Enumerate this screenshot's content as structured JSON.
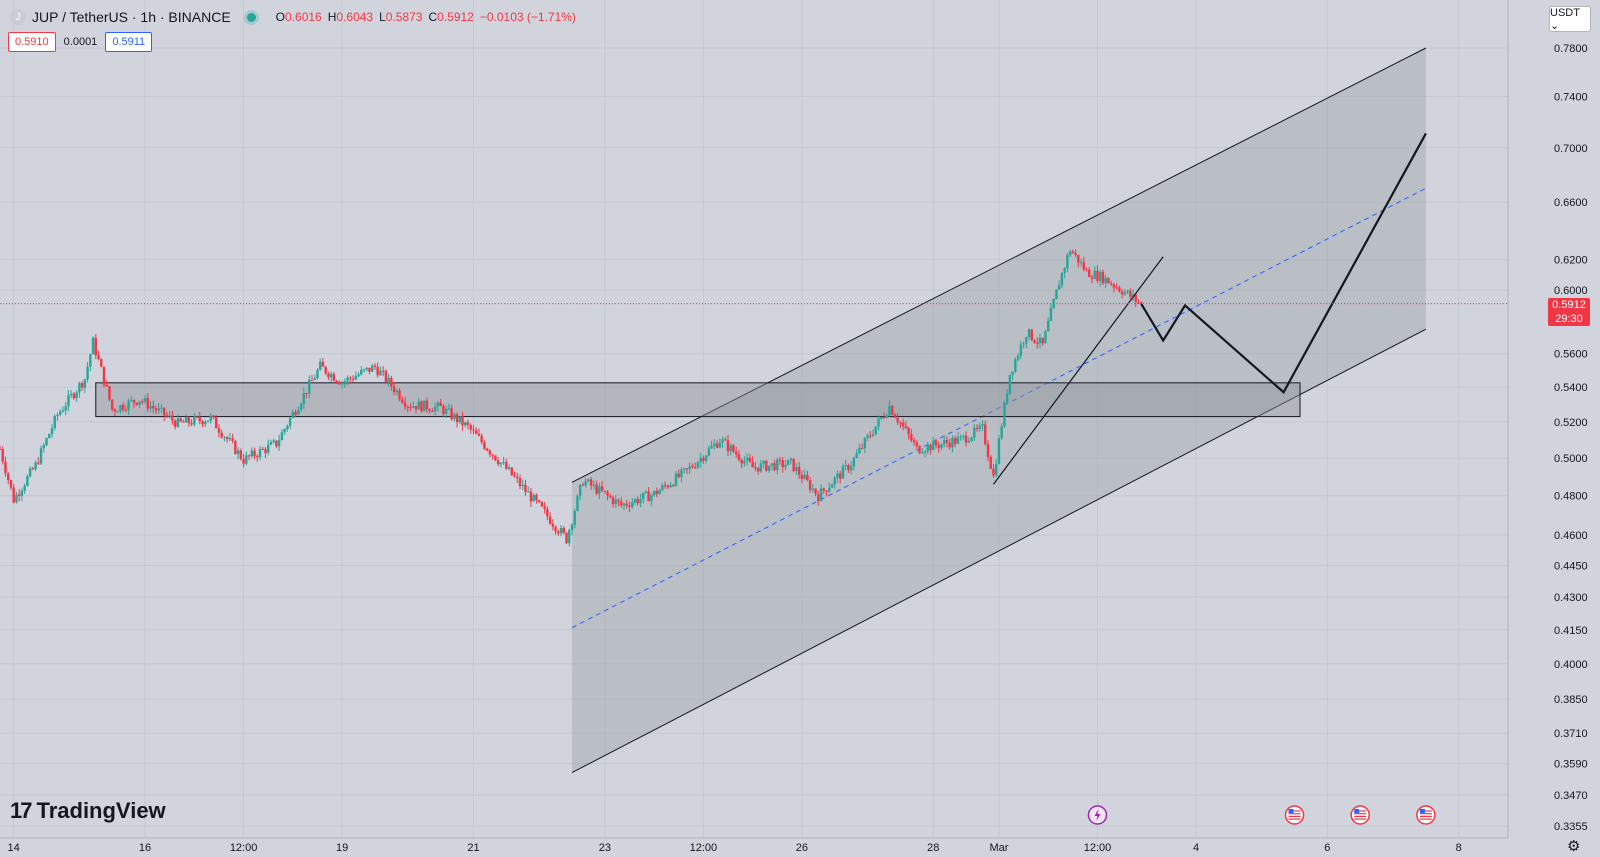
{
  "header": {
    "symbol_icon": "J",
    "title": "JUP / TetherUS · 1h · BINANCE",
    "ohlc": {
      "o_label": "O",
      "o": "0.6016",
      "h_label": "H",
      "h": "0.6043",
      "l_label": "L",
      "l": "0.5873",
      "c_label": "C",
      "c": "0.5912",
      "change": "−0.0103 (−1.71%)"
    }
  },
  "prices": {
    "sell": "0.5910",
    "spread": "0.0001",
    "buy": "0.5911"
  },
  "currency": "USDT ⌄",
  "brand": {
    "mark": "17",
    "name": "TradingView"
  },
  "current_price": {
    "value": "0.5912",
    "countdown": "29:30"
  },
  "settings_icon": "gear-icon",
  "colors": {
    "up": "#26a69a",
    "down": "#f23645",
    "background": "#d1d4dc",
    "grid": "#c4c8d1",
    "channel_fill": "#a8abb3",
    "dashed": "#2962ff"
  },
  "chart_data": {
    "type": "candlestick",
    "title": "JUP / TetherUS · 1h · BINANCE",
    "y_scale": "log",
    "ylim": [
      0.3355,
      0.78
    ],
    "xlim": [
      "2025-02-13T19:00",
      "2025-03-08T18:00"
    ],
    "y_ticks": [
      "0.7800",
      "0.7400",
      "0.7000",
      "0.6600",
      "0.6200",
      "0.6000",
      "0.5600",
      "0.5400",
      "0.5200",
      "0.5000",
      "0.4800",
      "0.4600",
      "0.4450",
      "0.4300",
      "0.4150",
      "0.4000",
      "0.3850",
      "0.3710",
      "0.3590",
      "0.3470",
      "0.3355"
    ],
    "x_ticks": [
      {
        "label": "14",
        "t": "2025-02-14T00:00"
      },
      {
        "label": "16",
        "t": "2025-02-16T00:00"
      },
      {
        "label": "12:00",
        "t": "2025-02-17T12:00"
      },
      {
        "label": "19",
        "t": "2025-02-19T00:00"
      },
      {
        "label": "21",
        "t": "2025-02-21T00:00"
      },
      {
        "label": "23",
        "t": "2025-02-23T00:00"
      },
      {
        "label": "12:00",
        "t": "2025-02-24T12:00"
      },
      {
        "label": "26",
        "t": "2025-02-26T00:00"
      },
      {
        "label": "28",
        "t": "2025-02-28T00:00"
      },
      {
        "label": "Mar",
        "t": "2025-03-01T00:00"
      },
      {
        "label": "12:00",
        "t": "2025-03-02T12:00"
      },
      {
        "label": "4",
        "t": "2025-03-04T00:00"
      },
      {
        "label": "6",
        "t": "2025-03-06T00:00"
      },
      {
        "label": "8",
        "t": "2025-03-08T00:00"
      }
    ],
    "price_path": [
      [
        "2025-02-13T19:00",
        0.505
      ],
      [
        "2025-02-14T00:00",
        0.478
      ],
      [
        "2025-02-14T08:00",
        0.496
      ],
      [
        "2025-02-14T16:00",
        0.524
      ],
      [
        "2025-02-15T02:00",
        0.545
      ],
      [
        "2025-02-15T05:00",
        0.567
      ],
      [
        "2025-02-15T12:00",
        0.527
      ],
      [
        "2025-02-15T22:00",
        0.533
      ],
      [
        "2025-02-16T12:00",
        0.519
      ],
      [
        "2025-02-17T00:00",
        0.522
      ],
      [
        "2025-02-17T12:00",
        0.499
      ],
      [
        "2025-02-18T00:00",
        0.508
      ],
      [
        "2025-02-18T16:00",
        0.552
      ],
      [
        "2025-02-19T00:00",
        0.543
      ],
      [
        "2025-02-19T12:00",
        0.552
      ],
      [
        "2025-02-20T00:00",
        0.53
      ],
      [
        "2025-02-20T12:00",
        0.528
      ],
      [
        "2025-02-20T22:00",
        0.517
      ],
      [
        "2025-02-21T06:00",
        0.504
      ],
      [
        "2025-02-21T20:00",
        0.481
      ],
      [
        "2025-02-22T10:00",
        0.458
      ],
      [
        "2025-02-22T16:00",
        0.488
      ],
      [
        "2025-02-23T06:00",
        0.475
      ],
      [
        "2025-02-23T18:00",
        0.481
      ],
      [
        "2025-02-24T06:00",
        0.493
      ],
      [
        "2025-02-24T18:00",
        0.51
      ],
      [
        "2025-02-25T06:00",
        0.495
      ],
      [
        "2025-02-25T20:00",
        0.497
      ],
      [
        "2025-02-26T06:00",
        0.48
      ],
      [
        "2025-02-26T18:00",
        0.497
      ],
      [
        "2025-02-27T08:00",
        0.529
      ],
      [
        "2025-02-27T18:00",
        0.505
      ],
      [
        "2025-02-28T10:00",
        0.51
      ],
      [
        "2025-02-28T18:00",
        0.516
      ],
      [
        "2025-02-28T22:00",
        0.49
      ],
      [
        "2025-03-01T04:00",
        0.548
      ],
      [
        "2025-03-01T10:00",
        0.573
      ],
      [
        "2025-03-01T16:00",
        0.565
      ],
      [
        "2025-03-01T22:00",
        0.605
      ],
      [
        "2025-03-02T02:00",
        0.627
      ],
      [
        "2025-03-02T08:00",
        0.612
      ],
      [
        "2025-03-02T14:00",
        0.608
      ],
      [
        "2025-03-02T20:00",
        0.601
      ],
      [
        "2025-03-03T04:00",
        0.591
      ]
    ],
    "annotations": {
      "channel": {
        "start": "2025-02-22T12:00",
        "end": "2025-03-07T12:00",
        "upper": [
          0.487,
          0.78
        ],
        "lower": [
          0.3555,
          0.575
        ]
      },
      "channel_midline": {
        "start": "2025-02-22T12:00",
        "end": "2025-03-07T12:00",
        "values": [
          0.416,
          0.67
        ],
        "style": "dashed"
      },
      "zone": {
        "start": "2025-02-15T06:00",
        "end": "2025-03-05T14:00",
        "top": 0.5425,
        "bottom": 0.523
      },
      "trendline": {
        "points": [
          [
            "2025-02-28T22:00",
            0.486
          ],
          [
            "2025-03-03T12:00",
            0.622
          ]
        ]
      },
      "projection": {
        "points": [
          [
            "2025-03-03T04:00",
            0.591
          ],
          [
            "2025-03-03T12:00",
            0.568
          ],
          [
            "2025-03-03T20:00",
            0.59
          ],
          [
            "2025-03-05T08:00",
            0.537
          ],
          [
            "2025-03-07T12:00",
            0.711
          ]
        ]
      },
      "horizontal_line": {
        "value": 0.5912,
        "style": "dotted"
      },
      "event_markers": [
        {
          "icon": "lightning-icon",
          "t": "2025-03-02T12:00"
        },
        {
          "icon": "us-flag-icon",
          "t": "2025-03-05T12:00"
        },
        {
          "icon": "us-flag-icon",
          "t": "2025-03-06T12:00"
        },
        {
          "icon": "us-flag-icon",
          "t": "2025-03-07T12:00"
        }
      ]
    }
  }
}
